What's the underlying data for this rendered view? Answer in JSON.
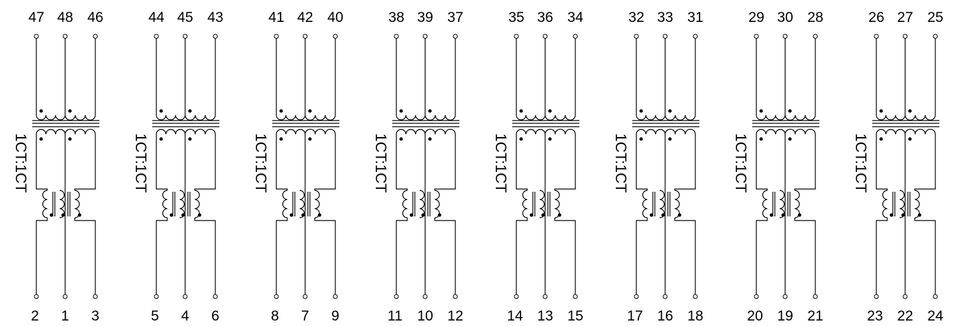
{
  "diagram": {
    "channels": [
      {
        "top_pins": [
          "47",
          "48",
          "46"
        ],
        "bottom_pins": [
          "2",
          "1",
          "3"
        ],
        "ratio": "1CT:1CT"
      },
      {
        "top_pins": [
          "44",
          "45",
          "43"
        ],
        "bottom_pins": [
          "5",
          "4",
          "6"
        ],
        "ratio": "1CT:1CT"
      },
      {
        "top_pins": [
          "41",
          "42",
          "40"
        ],
        "bottom_pins": [
          "8",
          "7",
          "9"
        ],
        "ratio": "1CT:1CT"
      },
      {
        "top_pins": [
          "38",
          "39",
          "37"
        ],
        "bottom_pins": [
          "11",
          "10",
          "12"
        ],
        "ratio": "1CT:1CT"
      },
      {
        "top_pins": [
          "35",
          "36",
          "34"
        ],
        "bottom_pins": [
          "14",
          "13",
          "15"
        ],
        "ratio": "1CT:1CT"
      },
      {
        "top_pins": [
          "32",
          "33",
          "31"
        ],
        "bottom_pins": [
          "17",
          "16",
          "18"
        ],
        "ratio": "1CT:1CT"
      },
      {
        "top_pins": [
          "29",
          "30",
          "28"
        ],
        "bottom_pins": [
          "20",
          "19",
          "21"
        ],
        "ratio": "1CT:1CT"
      },
      {
        "top_pins": [
          "26",
          "27",
          "25"
        ],
        "bottom_pins": [
          "23",
          "22",
          "24"
        ],
        "ratio": "1CT:1CT"
      }
    ]
  }
}
